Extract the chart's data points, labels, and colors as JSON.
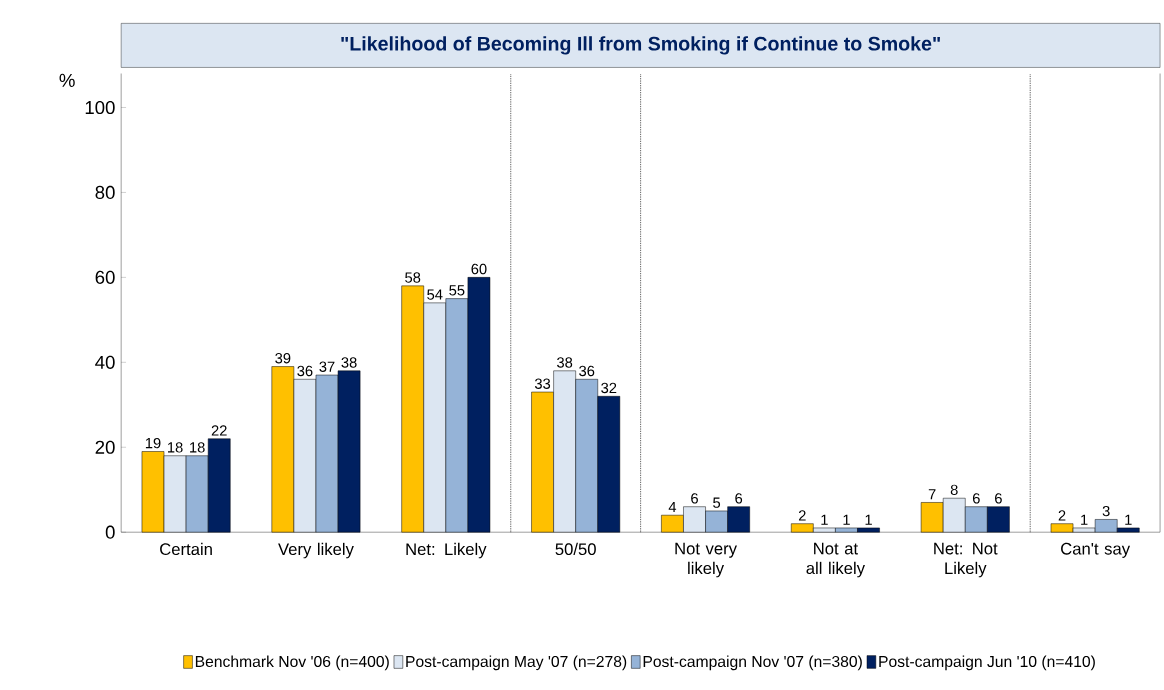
{
  "chart_data": {
    "type": "bar",
    "title": "\"Likelihood of Becoming Ill from Smoking if Continue to Smoke\"",
    "ylabel": "%",
    "categories": [
      "Certain",
      "Very likely",
      "Net: Likely",
      "50/50",
      "Not very likely",
      "Not at all likely",
      "Net: Not Likely",
      "Can't say"
    ],
    "series": [
      {
        "name": "Benchmark Nov '06 (n=400)",
        "color": "#ffc000",
        "values": [
          19,
          39,
          58,
          33,
          4,
          2,
          7,
          2
        ]
      },
      {
        "name": "Post-campaign May '07 (n=278)",
        "color": "#dce6f2",
        "values": [
          18,
          36,
          54,
          38,
          6,
          1,
          8,
          1
        ]
      },
      {
        "name": "Post-campaign Nov '07 (n=380)",
        "color": "#95b3d7",
        "values": [
          18,
          37,
          55,
          36,
          5,
          1,
          6,
          3
        ]
      },
      {
        "name": "Post-campaign Jun '10 (n=410)",
        "color": "#002060",
        "values": [
          22,
          38,
          60,
          32,
          6,
          1,
          6,
          1
        ]
      }
    ],
    "ylim": [
      0,
      108
    ],
    "yticks": [
      0,
      20,
      40,
      60,
      80,
      100
    ],
    "data_labels": true,
    "legend": "bottom",
    "grid": false
  }
}
